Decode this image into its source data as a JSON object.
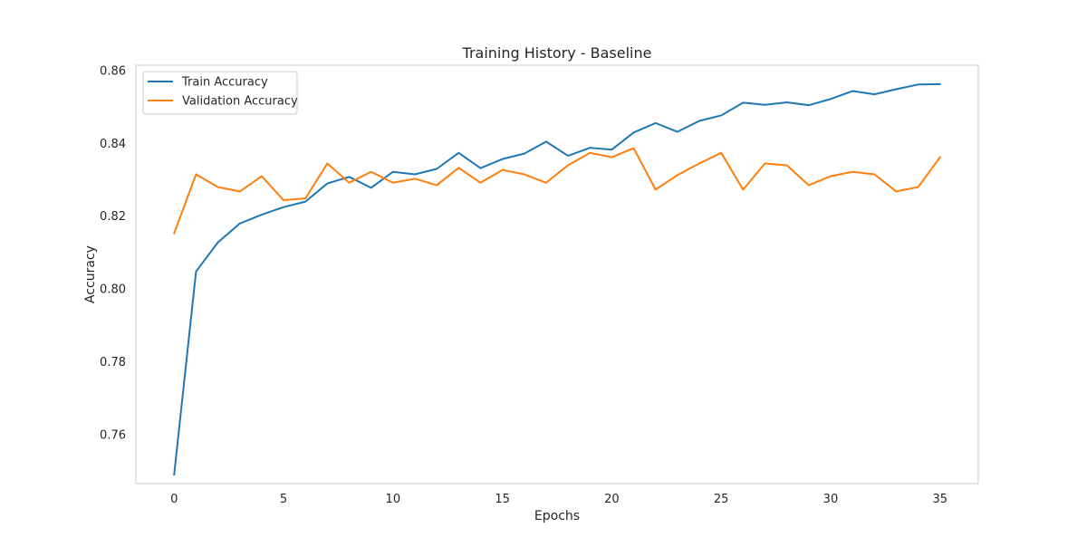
{
  "chart_data": {
    "type": "line",
    "title": "Training History - Baseline",
    "xlabel": "Epochs",
    "ylabel": "Accuracy",
    "xlim": [
      -1.75,
      36.75
    ],
    "ylim": [
      0.7465,
      0.8615
    ],
    "xticks": [
      0,
      5,
      10,
      15,
      20,
      25,
      30,
      35
    ],
    "yticks": [
      0.76,
      0.78,
      0.8,
      0.82,
      0.84,
      0.86
    ],
    "ytick_labels": [
      "0.76",
      "0.78",
      "0.80",
      "0.82",
      "0.84",
      "0.86"
    ],
    "grid": false,
    "legend_position": "top-left",
    "x": [
      0,
      1,
      2,
      3,
      4,
      5,
      6,
      7,
      8,
      9,
      10,
      11,
      12,
      13,
      14,
      15,
      16,
      17,
      18,
      19,
      20,
      21,
      22,
      23,
      24,
      25,
      26,
      27,
      28,
      29,
      30,
      31,
      32,
      33,
      34,
      35
    ],
    "series": [
      {
        "name": "Train Accuracy",
        "color": "#1f77b4",
        "values": [
          0.749,
          0.8048,
          0.8128,
          0.818,
          0.8204,
          0.8225,
          0.824,
          0.829,
          0.8308,
          0.8278,
          0.8322,
          0.8315,
          0.833,
          0.8374,
          0.8332,
          0.8357,
          0.8372,
          0.8405,
          0.8366,
          0.8388,
          0.8383,
          0.843,
          0.8456,
          0.8432,
          0.8462,
          0.8477,
          0.8512,
          0.8506,
          0.8513,
          0.8505,
          0.8522,
          0.8544,
          0.8535,
          0.8549,
          0.8562,
          0.8563
        ]
      },
      {
        "name": "Validation Accuracy",
        "color": "#ff7f0e",
        "values": [
          0.8153,
          0.8315,
          0.828,
          0.8268,
          0.831,
          0.8244,
          0.8249,
          0.8345,
          0.8292,
          0.8322,
          0.8292,
          0.8303,
          0.8285,
          0.8333,
          0.8292,
          0.8327,
          0.8315,
          0.8292,
          0.834,
          0.8374,
          0.8362,
          0.8387,
          0.8273,
          0.8313,
          0.8345,
          0.8374,
          0.8273,
          0.8345,
          0.834,
          0.8285,
          0.831,
          0.8322,
          0.8315,
          0.8268,
          0.828,
          0.8362
        ]
      }
    ]
  }
}
